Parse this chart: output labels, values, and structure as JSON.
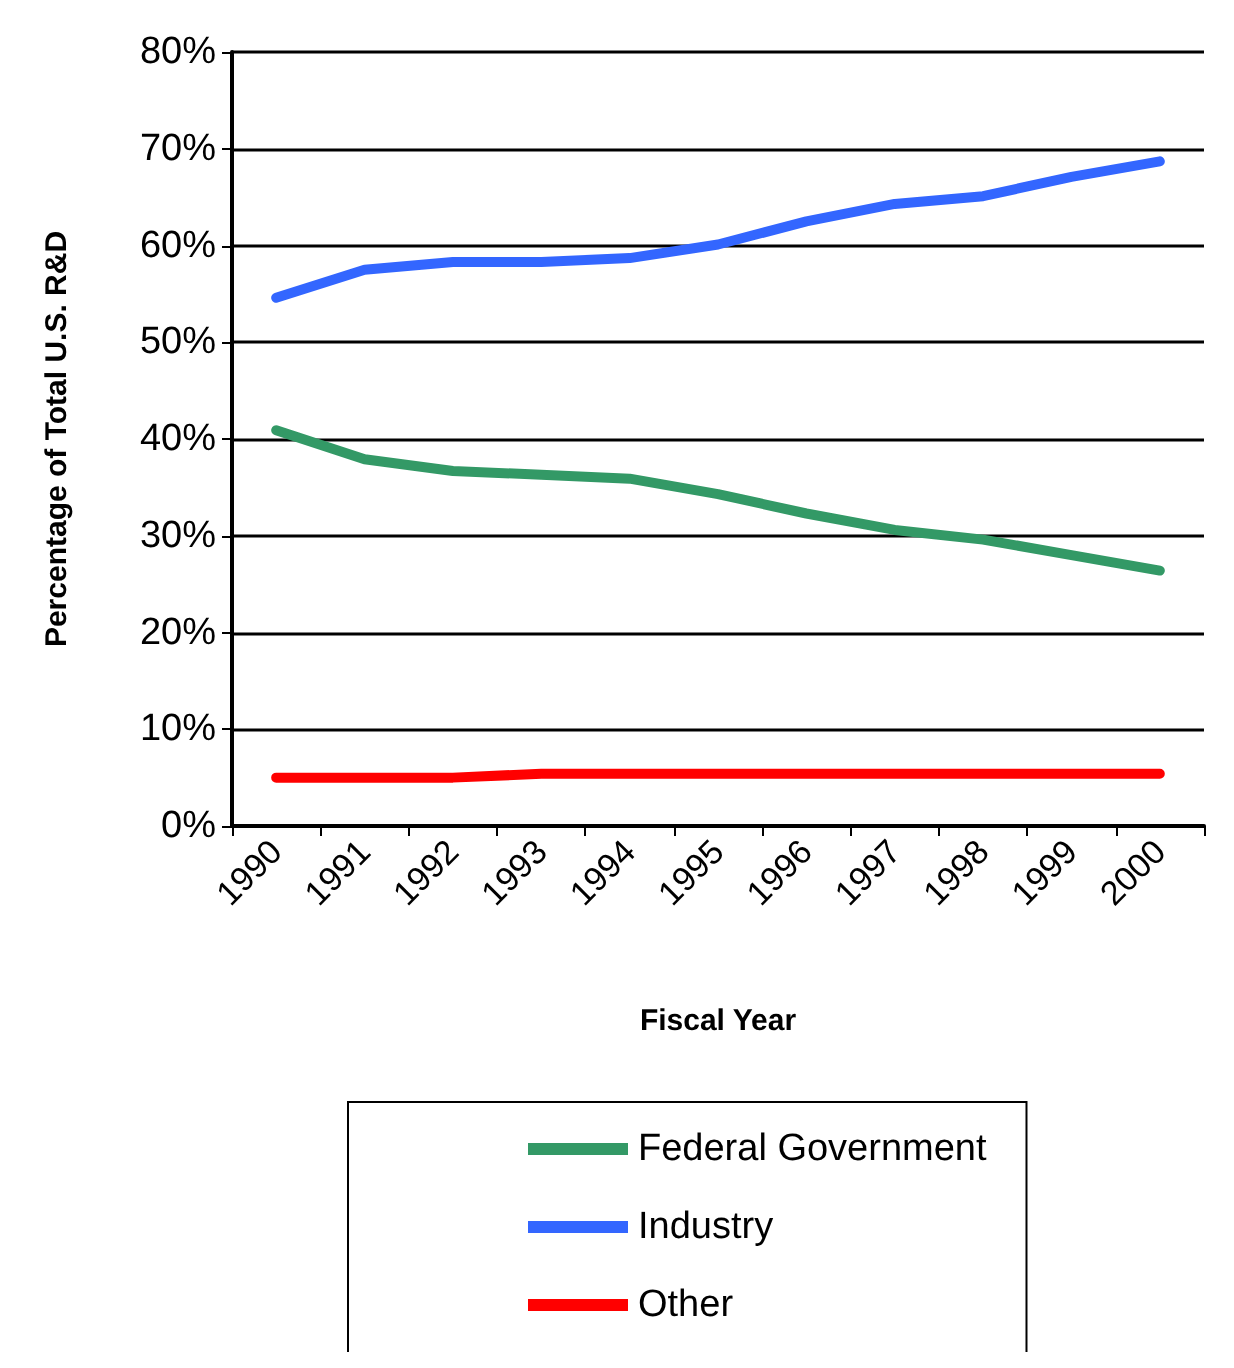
{
  "chart_data": {
    "type": "line",
    "xlabel": "Fiscal Year",
    "ylabel": "Percentage of Total U.S. R&D",
    "categories": [
      "1990",
      "1991",
      "1992",
      "1993",
      "1994",
      "1995",
      "1996",
      "1997",
      "1998",
      "1999",
      "2000"
    ],
    "series": [
      {
        "name": "Federal Government",
        "color": "#339966",
        "values": [
          40.9,
          37.9,
          36.7,
          36.3,
          35.9,
          34.3,
          32.3,
          30.6,
          29.6,
          28.0,
          26.4
        ]
      },
      {
        "name": "Industry",
        "color": "#3366ff",
        "values": [
          54.6,
          57.5,
          58.3,
          58.3,
          58.7,
          60.1,
          62.5,
          64.3,
          65.1,
          67.1,
          68.7
        ]
      },
      {
        "name": "Other",
        "color": "#ff0000",
        "values": [
          5.0,
          5.0,
          5.0,
          5.4,
          5.4,
          5.4,
          5.4,
          5.4,
          5.4,
          5.4,
          5.4
        ]
      }
    ],
    "ylim": [
      0,
      80
    ],
    "yticks": [
      {
        "value": 0,
        "label": "0%"
      },
      {
        "value": 10,
        "label": "10%"
      },
      {
        "value": 20,
        "label": "20%"
      },
      {
        "value": 30,
        "label": "30%"
      },
      {
        "value": 40,
        "label": "40%"
      },
      {
        "value": 50,
        "label": "50%"
      },
      {
        "value": 60,
        "label": "60%"
      },
      {
        "value": 70,
        "label": "70%"
      },
      {
        "value": 80,
        "label": "80%"
      }
    ],
    "grid": "y",
    "legend": "bottom",
    "marker": "none",
    "line_style": "solid"
  }
}
